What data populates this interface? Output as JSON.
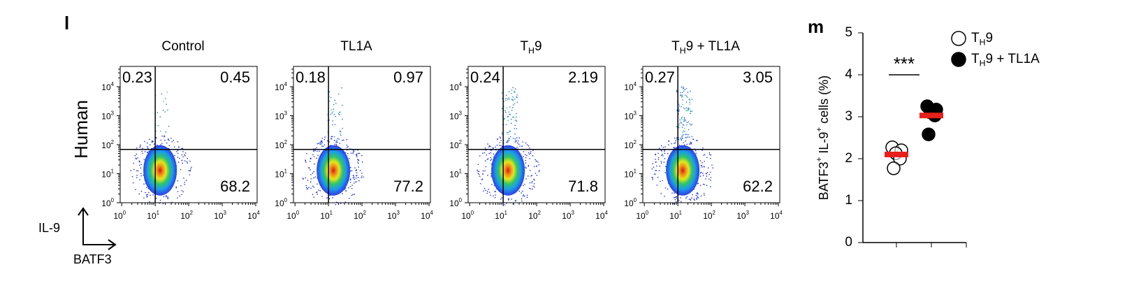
{
  "panel_labels": [
    "l",
    "m"
  ],
  "row_label": "Human",
  "axis_key": {
    "x": "BATF3",
    "y": "IL-9"
  },
  "chart_data": [
    {
      "type": "flow",
      "title": [
        "Control"
      ],
      "log_scale": true,
      "gate": [
        10,
        69
      ],
      "xlim": [
        0.9,
        11000
      ],
      "ylim": [
        1,
        50000
      ],
      "xticks": [
        {
          "value": 1,
          "label": [
            "10",
            "0"
          ]
        },
        {
          "value": 10,
          "label": [
            "10",
            "1"
          ]
        },
        {
          "value": 100,
          "label": [
            "10",
            "2"
          ]
        },
        {
          "value": 1000,
          "label": [
            "10",
            "3"
          ]
        },
        {
          "value": 10000,
          "label": [
            "10",
            "4"
          ]
        }
      ],
      "yticks": [
        {
          "value": 1,
          "label": [
            "10",
            "0"
          ]
        },
        {
          "value": 10,
          "label": [
            "10",
            "1"
          ]
        },
        {
          "value": 100,
          "label": [
            "10",
            "2"
          ]
        },
        {
          "value": 1000,
          "label": [
            "10",
            "3"
          ]
        },
        {
          "value": 10000,
          "label": [
            "10",
            "4"
          ]
        }
      ],
      "quadrants": {
        "upper_left": 0.23,
        "upper_right": 0.45,
        "lower_right": 68.2
      }
    },
    {
      "type": "flow",
      "title": [
        "TL1A"
      ],
      "log_scale": true,
      "gate": [
        10,
        69
      ],
      "xlim": [
        0.9,
        11000
      ],
      "ylim": [
        1,
        50000
      ],
      "xticks": [
        {
          "value": 1,
          "label": [
            "10",
            "0"
          ]
        },
        {
          "value": 10,
          "label": [
            "10",
            "1"
          ]
        },
        {
          "value": 100,
          "label": [
            "10",
            "2"
          ]
        },
        {
          "value": 1000,
          "label": [
            "10",
            "3"
          ]
        },
        {
          "value": 10000,
          "label": [
            "10",
            "4"
          ]
        }
      ],
      "yticks": [
        {
          "value": 1,
          "label": [
            "10",
            "0"
          ]
        },
        {
          "value": 10,
          "label": [
            "10",
            "1"
          ]
        },
        {
          "value": 100,
          "label": [
            "10",
            "2"
          ]
        },
        {
          "value": 1000,
          "label": [
            "10",
            "3"
          ]
        },
        {
          "value": 10000,
          "label": [
            "10",
            "4"
          ]
        }
      ],
      "quadrants": {
        "upper_left": 0.18,
        "upper_right": 0.97,
        "lower_right": 77.2
      }
    },
    {
      "type": "flow",
      "title": [
        "T",
        "H",
        "9"
      ],
      "log_scale": true,
      "gate": [
        10,
        69
      ],
      "xlim": [
        0.9,
        11000
      ],
      "ylim": [
        1,
        50000
      ],
      "xticks": [
        {
          "value": 1,
          "label": [
            "10",
            "0"
          ]
        },
        {
          "value": 10,
          "label": [
            "10",
            "1"
          ]
        },
        {
          "value": 100,
          "label": [
            "10",
            "2"
          ]
        },
        {
          "value": 1000,
          "label": [
            "10",
            "3"
          ]
        },
        {
          "value": 10000,
          "label": [
            "10",
            "4"
          ]
        }
      ],
      "yticks": [
        {
          "value": 1,
          "label": [
            "10",
            "0"
          ]
        },
        {
          "value": 10,
          "label": [
            "10",
            "1"
          ]
        },
        {
          "value": 100,
          "label": [
            "10",
            "2"
          ]
        },
        {
          "value": 1000,
          "label": [
            "10",
            "3"
          ]
        },
        {
          "value": 10000,
          "label": [
            "10",
            "4"
          ]
        }
      ],
      "quadrants": {
        "upper_left": 0.24,
        "upper_right": 2.19,
        "lower_right": 71.8
      }
    },
    {
      "type": "flow",
      "title": [
        "T",
        "H",
        "9 + TL1A"
      ],
      "log_scale": true,
      "gate": [
        10,
        69
      ],
      "xlim": [
        0.9,
        11000
      ],
      "ylim": [
        1,
        50000
      ],
      "xticks": [
        {
          "value": 1,
          "label": [
            "10",
            "0"
          ]
        },
        {
          "value": 10,
          "label": [
            "10",
            "1"
          ]
        },
        {
          "value": 100,
          "label": [
            "10",
            "2"
          ]
        },
        {
          "value": 1000,
          "label": [
            "10",
            "3"
          ]
        },
        {
          "value": 10000,
          "label": [
            "10",
            "4"
          ]
        }
      ],
      "yticks": [
        {
          "value": 1,
          "label": [
            "10",
            "0"
          ]
        },
        {
          "value": 10,
          "label": [
            "10",
            "1"
          ]
        },
        {
          "value": 100,
          "label": [
            "10",
            "2"
          ]
        },
        {
          "value": 1000,
          "label": [
            "10",
            "3"
          ]
        },
        {
          "value": 10000,
          "label": [
            "10",
            "4"
          ]
        }
      ],
      "quadrants": {
        "upper_left": 0.27,
        "upper_right": 3.05,
        "lower_right": 62.2
      }
    },
    {
      "type": "scatter",
      "y_label": [
        "BATF3",
        "+",
        " IL-9",
        "+",
        " cells (%)"
      ],
      "categories": [
        null,
        null
      ],
      "ylim": [
        0,
        5
      ],
      "yticks": [
        0,
        1,
        2,
        3,
        4,
        5
      ],
      "mean_color": "#e8201a",
      "significance": "***",
      "series": [
        {
          "name": [
            "T",
            "H",
            "9"
          ],
          "marker": "open",
          "values": [
            2.27,
            2.2,
            2.13,
            2.0,
            1.77
          ],
          "mean": 2.1
        },
        {
          "name": [
            "T",
            "H",
            "9 + TL1A"
          ],
          "marker": "filled",
          "values": [
            3.25,
            3.17,
            3.1,
            3.03,
            2.58
          ],
          "mean": 3.03
        }
      ]
    }
  ]
}
